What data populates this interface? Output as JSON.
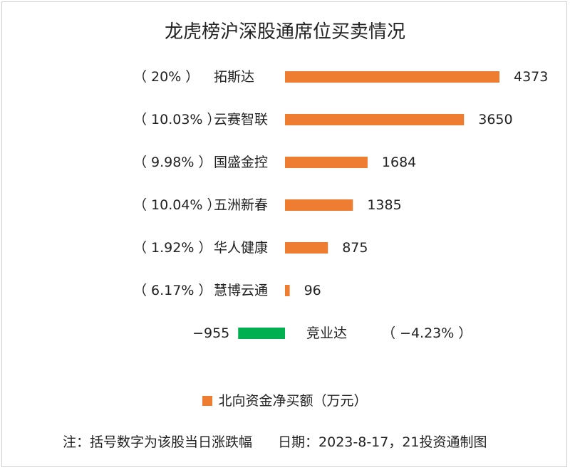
{
  "chart_data": {
    "type": "bar",
    "orientation": "horizontal",
    "title": "龙虎榜沪深股通席位买卖情况",
    "categories": [
      "拓斯达",
      "云赛智联",
      "国盛金控",
      "五洲新春",
      "华人健康",
      "慧博云通",
      "竞业达"
    ],
    "changes": [
      "（ 20% ）",
      "（ 10.03% ）",
      "（ 9.98% ）",
      "（ 10.04% ）",
      "（ 1.92% ）",
      "（ 6.17% ）",
      "（ −4.23% ）"
    ],
    "values": [
      4373,
      3650,
      1684,
      1385,
      875,
      96,
      -955
    ],
    "value_labels": [
      "4373",
      "3650",
      "1684",
      "1385",
      "875",
      "96",
      "−955"
    ],
    "series": [
      {
        "name": "北向资金净买额（万元）",
        "values": [
          4373,
          3650,
          1684,
          1385,
          875,
          96,
          -955
        ]
      }
    ],
    "legend_position": "bottom",
    "grid": false
  },
  "colors": {
    "positive": "#ee7d31",
    "negative": "#00b050"
  },
  "footer": {
    "note": "注：括号数字为该股当日涨跌幅",
    "source": "日期：2023-8-17，21投资通制图"
  }
}
